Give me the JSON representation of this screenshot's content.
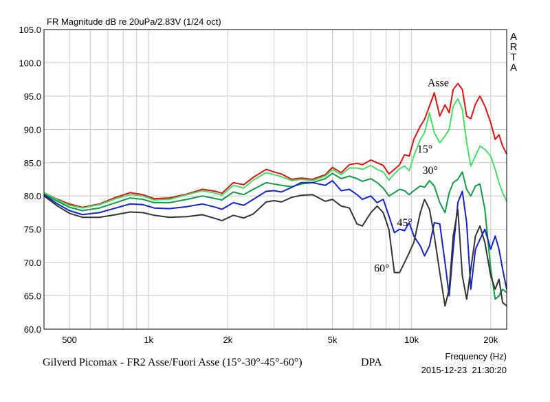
{
  "chart_data": {
    "type": "line",
    "title": "FR Magnitude dB re 20uPa/2.83V (1/24 oct)",
    "subtitle": "Gilverd Picomax - FR2 Asse/Fuori Asse (15°-30°-45°-60°)",
    "tag": "DPA",
    "watermark": "ARTA",
    "xlabel": "Frequency (Hz)",
    "timestamp": "2015-12-23  21:30:20",
    "xscale": "log",
    "xlim": [
      400,
      23000
    ],
    "ylim": [
      60,
      105
    ],
    "grid": true,
    "x_ticks": [
      {
        "value": 500,
        "label": "500"
      },
      {
        "value": 1000,
        "label": "1k"
      },
      {
        "value": 2000,
        "label": "2k"
      },
      {
        "value": 5000,
        "label": "5k"
      },
      {
        "value": 10000,
        "label": "10k"
      },
      {
        "value": 20000,
        "label": "20k"
      }
    ],
    "y_ticks": [
      {
        "value": 60,
        "label": "60.0"
      },
      {
        "value": 65,
        "label": "65.0"
      },
      {
        "value": 70,
        "label": "70.0"
      },
      {
        "value": 75,
        "label": "75.0"
      },
      {
        "value": 80,
        "label": "80.0"
      },
      {
        "value": 85,
        "label": "85.0"
      },
      {
        "value": 90,
        "label": "90.0"
      },
      {
        "value": 95,
        "label": "95.0"
      },
      {
        "value": 100,
        "label": "100.0"
      },
      {
        "value": 105,
        "label": "105.0"
      }
    ],
    "series": [
      {
        "name": "Asse",
        "color": "#dd1111",
        "label_at": [
          11500,
          96.5
        ],
        "points": [
          [
            400,
            80.5
          ],
          [
            450,
            79.5
          ],
          [
            500,
            78.8
          ],
          [
            560,
            78.3
          ],
          [
            650,
            78.8
          ],
          [
            750,
            79.8
          ],
          [
            850,
            80.5
          ],
          [
            950,
            80.2
          ],
          [
            1050,
            79.6
          ],
          [
            1200,
            79.7
          ],
          [
            1400,
            80.3
          ],
          [
            1600,
            81.0
          ],
          [
            1800,
            80.7
          ],
          [
            1900,
            80.4
          ],
          [
            2100,
            82.0
          ],
          [
            2300,
            81.7
          ],
          [
            2500,
            82.8
          ],
          [
            2800,
            84.0
          ],
          [
            3000,
            83.6
          ],
          [
            3200,
            83.3
          ],
          [
            3500,
            82.5
          ],
          [
            3800,
            82.7
          ],
          [
            4200,
            82.5
          ],
          [
            4700,
            83.2
          ],
          [
            5000,
            84.3
          ],
          [
            5400,
            83.5
          ],
          [
            5800,
            84.7
          ],
          [
            6200,
            84.9
          ],
          [
            6500,
            84.7
          ],
          [
            7000,
            85.4
          ],
          [
            7400,
            85.0
          ],
          [
            7800,
            84.6
          ],
          [
            8200,
            83.3
          ],
          [
            8600,
            84.0
          ],
          [
            9000,
            84.7
          ],
          [
            9400,
            86.2
          ],
          [
            9800,
            86.0
          ],
          [
            10200,
            88.5
          ],
          [
            10800,
            90.5
          ],
          [
            11200,
            91.5
          ],
          [
            11700,
            93.5
          ],
          [
            12200,
            95.5
          ],
          [
            12800,
            92.0
          ],
          [
            13400,
            93.7
          ],
          [
            13900,
            92.5
          ],
          [
            14400,
            96.0
          ],
          [
            15000,
            96.9
          ],
          [
            15600,
            96.0
          ],
          [
            16200,
            92.0
          ],
          [
            16800,
            91.6
          ],
          [
            17500,
            93.8
          ],
          [
            18200,
            95.0
          ],
          [
            19000,
            93.5
          ],
          [
            20000,
            91.0
          ],
          [
            20800,
            88.5
          ],
          [
            21500,
            89.2
          ],
          [
            22200,
            87.5
          ],
          [
            23000,
            86.3
          ]
        ]
      },
      {
        "name": "15°",
        "color": "#44dd66",
        "label_at": [
          10500,
          86.5
        ],
        "points": [
          [
            400,
            80.5
          ],
          [
            450,
            79.4
          ],
          [
            500,
            78.6
          ],
          [
            560,
            78.2
          ],
          [
            650,
            78.7
          ],
          [
            750,
            79.6
          ],
          [
            850,
            80.2
          ],
          [
            950,
            80.0
          ],
          [
            1050,
            79.4
          ],
          [
            1200,
            79.5
          ],
          [
            1400,
            80.2
          ],
          [
            1600,
            80.8
          ],
          [
            1800,
            80.4
          ],
          [
            1900,
            80.1
          ],
          [
            2100,
            81.6
          ],
          [
            2300,
            81.2
          ],
          [
            2500,
            82.4
          ],
          [
            2800,
            83.5
          ],
          [
            3000,
            83.2
          ],
          [
            3200,
            82.9
          ],
          [
            3500,
            82.3
          ],
          [
            3800,
            82.5
          ],
          [
            4200,
            82.3
          ],
          [
            4700,
            83.0
          ],
          [
            5000,
            84.0
          ],
          [
            5400,
            83.2
          ],
          [
            5800,
            84.2
          ],
          [
            6200,
            84.2
          ],
          [
            6500,
            84.0
          ],
          [
            7000,
            84.6
          ],
          [
            7400,
            84.0
          ],
          [
            7800,
            83.6
          ],
          [
            8200,
            82.4
          ],
          [
            8600,
            83.3
          ],
          [
            9000,
            84.1
          ],
          [
            9400,
            84.5
          ],
          [
            9800,
            83.8
          ],
          [
            10200,
            86.0
          ],
          [
            10800,
            88.5
          ],
          [
            11200,
            89.5
          ],
          [
            11700,
            92.5
          ],
          [
            12200,
            89.5
          ],
          [
            12800,
            88.0
          ],
          [
            13400,
            89.0
          ],
          [
            13900,
            90.0
          ],
          [
            14400,
            93.5
          ],
          [
            15000,
            94.6
          ],
          [
            15600,
            93.0
          ],
          [
            16200,
            88.0
          ],
          [
            16800,
            84.5
          ],
          [
            17500,
            86.0
          ],
          [
            18200,
            87.5
          ],
          [
            19000,
            87.0
          ],
          [
            20000,
            86.0
          ],
          [
            20800,
            84.0
          ],
          [
            21500,
            82.0
          ],
          [
            22200,
            80.5
          ],
          [
            23000,
            79.2
          ]
        ]
      },
      {
        "name": "30°",
        "color": "#119944",
        "label_at": [
          11000,
          83.3
        ],
        "points": [
          [
            400,
            80.3
          ],
          [
            450,
            79.2
          ],
          [
            500,
            78.3
          ],
          [
            560,
            77.8
          ],
          [
            650,
            78.2
          ],
          [
            750,
            79.0
          ],
          [
            850,
            79.7
          ],
          [
            950,
            79.5
          ],
          [
            1050,
            79.0
          ],
          [
            1200,
            79.0
          ],
          [
            1400,
            79.5
          ],
          [
            1600,
            80.0
          ],
          [
            1800,
            79.6
          ],
          [
            1900,
            79.4
          ],
          [
            2100,
            80.6
          ],
          [
            2300,
            80.2
          ],
          [
            2500,
            81.0
          ],
          [
            2800,
            82.0
          ],
          [
            3000,
            81.8
          ],
          [
            3200,
            81.6
          ],
          [
            3500,
            81.4
          ],
          [
            3800,
            81.8
          ],
          [
            4200,
            82.0
          ],
          [
            4700,
            82.6
          ],
          [
            5000,
            83.4
          ],
          [
            5400,
            82.6
          ],
          [
            5800,
            83.0
          ],
          [
            6200,
            82.6
          ],
          [
            6500,
            82.2
          ],
          [
            7000,
            82.6
          ],
          [
            7400,
            82.0
          ],
          [
            7800,
            81.2
          ],
          [
            8200,
            80.0
          ],
          [
            8600,
            80.5
          ],
          [
            9000,
            81.0
          ],
          [
            9400,
            80.8
          ],
          [
            9800,
            80.2
          ],
          [
            10200,
            80.8
          ],
          [
            10800,
            81.5
          ],
          [
            11200,
            81.3
          ],
          [
            11700,
            82.3
          ],
          [
            12200,
            81.5
          ],
          [
            12800,
            79.0
          ],
          [
            13400,
            77.5
          ],
          [
            13900,
            80.5
          ],
          [
            14400,
            82.0
          ],
          [
            15000,
            82.5
          ],
          [
            15600,
            83.6
          ],
          [
            16200,
            81.0
          ],
          [
            16800,
            80.0
          ],
          [
            17500,
            81.5
          ],
          [
            18200,
            81.8
          ],
          [
            19000,
            78.0
          ],
          [
            20000,
            69.0
          ],
          [
            20800,
            64.5
          ],
          [
            21500,
            65.0
          ],
          [
            22200,
            66.0
          ],
          [
            23000,
            65.5
          ]
        ]
      },
      {
        "name": "45°",
        "color": "#1122cc",
        "label_at": [
          8800,
          75.5
        ],
        "points": [
          [
            400,
            80.2
          ],
          [
            450,
            78.8
          ],
          [
            500,
            77.8
          ],
          [
            560,
            77.2
          ],
          [
            650,
            77.5
          ],
          [
            750,
            78.2
          ],
          [
            850,
            78.8
          ],
          [
            950,
            78.7
          ],
          [
            1050,
            78.2
          ],
          [
            1200,
            78.1
          ],
          [
            1400,
            78.4
          ],
          [
            1600,
            78.8
          ],
          [
            1800,
            78.3
          ],
          [
            1900,
            78.0
          ],
          [
            2100,
            79.0
          ],
          [
            2300,
            78.6
          ],
          [
            2500,
            79.5
          ],
          [
            2800,
            80.7
          ],
          [
            3000,
            80.8
          ],
          [
            3200,
            80.6
          ],
          [
            3500,
            81.3
          ],
          [
            3800,
            82.0
          ],
          [
            4200,
            82.0
          ],
          [
            4700,
            81.6
          ],
          [
            5000,
            82.3
          ],
          [
            5400,
            80.8
          ],
          [
            5800,
            81.0
          ],
          [
            6200,
            80.2
          ],
          [
            6500,
            79.5
          ],
          [
            7000,
            80.0
          ],
          [
            7400,
            79.0
          ],
          [
            7800,
            79.5
          ],
          [
            8200,
            77.0
          ],
          [
            8600,
            74.5
          ],
          [
            9000,
            75.0
          ],
          [
            9400,
            74.8
          ],
          [
            9800,
            76.0
          ],
          [
            10200,
            74.0
          ],
          [
            10800,
            72.5
          ],
          [
            11200,
            71.0
          ],
          [
            11700,
            72.5
          ],
          [
            12200,
            76.0
          ],
          [
            12800,
            75.8
          ],
          [
            13400,
            70.0
          ],
          [
            13900,
            65.0
          ],
          [
            14400,
            72.0
          ],
          [
            15000,
            79.0
          ],
          [
            15600,
            80.7
          ],
          [
            16200,
            76.0
          ],
          [
            16800,
            66.0
          ],
          [
            17500,
            72.0
          ],
          [
            18200,
            73.5
          ],
          [
            19000,
            75.0
          ],
          [
            20000,
            72.0
          ],
          [
            20800,
            74.0
          ],
          [
            21500,
            72.0
          ],
          [
            22200,
            69.0
          ],
          [
            23000,
            66.0
          ]
        ]
      },
      {
        "name": "60°",
        "color": "#333333",
        "label_at": [
          7200,
          68.6
        ],
        "points": [
          [
            400,
            80.0
          ],
          [
            450,
            78.5
          ],
          [
            500,
            77.4
          ],
          [
            560,
            76.8
          ],
          [
            650,
            76.8
          ],
          [
            750,
            77.2
          ],
          [
            850,
            77.6
          ],
          [
            950,
            77.5
          ],
          [
            1050,
            77.1
          ],
          [
            1200,
            76.8
          ],
          [
            1400,
            76.9
          ],
          [
            1600,
            77.2
          ],
          [
            1800,
            76.6
          ],
          [
            1900,
            76.3
          ],
          [
            2100,
            77.1
          ],
          [
            2300,
            76.7
          ],
          [
            2500,
            77.3
          ],
          [
            2800,
            79.1
          ],
          [
            3000,
            79.3
          ],
          [
            3200,
            79.1
          ],
          [
            3500,
            79.8
          ],
          [
            3800,
            80.1
          ],
          [
            4200,
            80.2
          ],
          [
            4700,
            79.2
          ],
          [
            5000,
            79.5
          ],
          [
            5400,
            78.5
          ],
          [
            5800,
            78.2
          ],
          [
            6200,
            75.8
          ],
          [
            6500,
            75.5
          ],
          [
            7000,
            77.5
          ],
          [
            7400,
            78.5
          ],
          [
            7800,
            77.5
          ],
          [
            8200,
            75.0
          ],
          [
            8600,
            68.5
          ],
          [
            9000,
            68.5
          ],
          [
            9400,
            70.0
          ],
          [
            9800,
            71.5
          ],
          [
            10200,
            73.0
          ],
          [
            10800,
            77.5
          ],
          [
            11200,
            79.5
          ],
          [
            11700,
            78.0
          ],
          [
            12200,
            74.0
          ],
          [
            12800,
            68.5
          ],
          [
            13400,
            63.5
          ],
          [
            13900,
            66.0
          ],
          [
            14400,
            74.0
          ],
          [
            15000,
            78.0
          ],
          [
            15600,
            68.0
          ],
          [
            16200,
            64.5
          ],
          [
            16800,
            69.0
          ],
          [
            17500,
            74.0
          ],
          [
            18200,
            75.5
          ],
          [
            19000,
            73.0
          ],
          [
            20000,
            68.0
          ],
          [
            20800,
            66.0
          ],
          [
            21500,
            67.5
          ],
          [
            22200,
            64.0
          ],
          [
            23000,
            63.5
          ]
        ]
      }
    ]
  }
}
